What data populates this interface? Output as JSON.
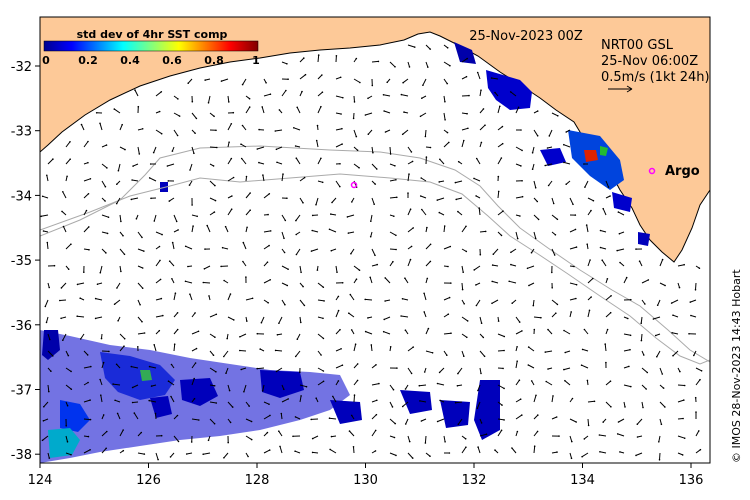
{
  "map": {
    "date_label": "25-Nov-2023 00Z",
    "current_source": "NRT00 GSL",
    "current_time": "25-Nov 06:00Z",
    "scale_label": "0.5m/s (1kt 24h)",
    "argo_label": "Argo",
    "credit": "© IMOS 28-Nov-2023 14:43 Hobart",
    "colorbar": {
      "title": "std dev of 4hr SST comp",
      "ticks": [
        "0",
        "0.2",
        "0.4",
        "0.6",
        "0.8",
        "1"
      ]
    },
    "x_ticks": [
      "124",
      "126",
      "128",
      "130",
      "132",
      "134",
      "136"
    ],
    "y_ticks": [
      "-32",
      "-33",
      "-34",
      "-35",
      "-36",
      "-37",
      "-38"
    ],
    "colors": {
      "land": "#FDC998",
      "ocean": "#FFFFFF",
      "arrows": "#000000",
      "bathymetry": "#AAAAAA",
      "argo": "#FF00FF"
    }
  }
}
